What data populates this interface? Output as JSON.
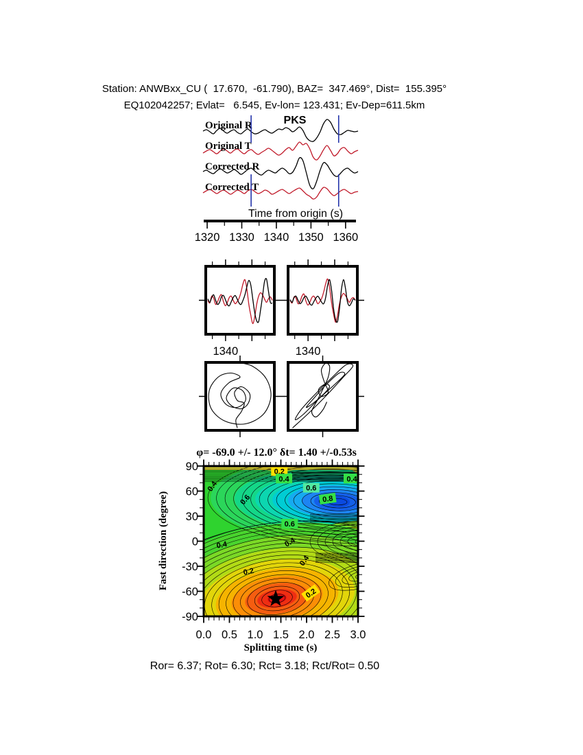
{
  "page": {
    "header_line1": "Station: ANWBxx_CU (  17.670,  -61.790), BAZ=  347.469°, Dist=  155.395°",
    "header_line2": "EQ102042257; Evlat=   6.545, Ev-lon= 123.431; Ev-Dep=611.5km",
    "stats_line": "Ror= 6.37; Rot= 6.30; Rct= 3.18; Rct/Rot= 0.50"
  },
  "colors": {
    "trace_red": "#c01828",
    "window_line_blue": "#2233aa",
    "phase_red": "#ee2222",
    "contour_green": "#2fd32f",
    "contour_blue": "#0b4ae0",
    "contour_red": "#e61212",
    "contour_yellow": "#e0e005"
  },
  "chart_data": [
    {
      "type": "line",
      "name": "seismogram traces",
      "phase_label": "PKS",
      "xlabel": "Time from origin (s)",
      "xlim": [
        1318.8,
        1363.6
      ],
      "x_major_ticks": [
        1320,
        1330,
        1340,
        1350,
        1360
      ],
      "x_minor_ticks": [
        1325,
        1335,
        1345,
        1355
      ],
      "window_lines": [
        1332.7,
        1358.0
      ],
      "traces": [
        {
          "name": "Original R",
          "color": "#000000",
          "values": [
            1,
            3,
            0,
            -3,
            2,
            5,
            1,
            -2,
            1,
            3,
            -1,
            -3,
            1,
            4,
            0,
            -3,
            -2,
            1,
            3,
            0,
            -2,
            1,
            4,
            3,
            6,
            4,
            0,
            3,
            7,
            2,
            -8,
            -13,
            -14,
            -9,
            0,
            12,
            18,
            14,
            4,
            -3,
            -4,
            -1,
            2,
            1,
            0,
            1
          ]
        },
        {
          "name": "Original T",
          "color": "#c01828",
          "values": [
            -2,
            1,
            3,
            0,
            -3,
            1,
            4,
            1,
            -2,
            2,
            4,
            0,
            -3,
            1,
            3,
            -1,
            -4,
            -1,
            2,
            5,
            2,
            -2,
            -5,
            -2,
            3,
            6,
            2,
            8,
            14,
            10,
            12,
            4,
            -8,
            -12,
            -6,
            3,
            9,
            2,
            -6,
            -3,
            4,
            6,
            1,
            -3,
            0,
            2
          ]
        },
        {
          "name": "Corrected R",
          "color": "#000000",
          "values": [
            0,
            2,
            -1,
            -3,
            1,
            4,
            1,
            -2,
            0,
            3,
            0,
            -4,
            -1,
            3,
            5,
            1,
            -3,
            -5,
            -1,
            2,
            0,
            -2,
            2,
            5,
            2,
            -3,
            -1,
            8,
            20,
            16,
            -2,
            -20,
            -25,
            -14,
            2,
            13,
            10,
            2,
            -5,
            -7,
            -2,
            3,
            5,
            1,
            -2,
            0
          ]
        },
        {
          "name": "Corrected T",
          "color": "#c01828",
          "values": [
            -1,
            2,
            4,
            1,
            -2,
            1,
            3,
            0,
            -3,
            0,
            3,
            1,
            -2,
            2,
            4,
            1,
            -2,
            0,
            3,
            1,
            -3,
            -1,
            2,
            4,
            1,
            -2,
            1,
            4,
            6,
            2,
            -3,
            -6,
            -10,
            -7,
            1,
            7,
            5,
            -1,
            -5,
            -2,
            2,
            4,
            1,
            -2,
            0,
            1
          ]
        }
      ]
    },
    {
      "type": "line",
      "name": "fast-slow waveform comparison",
      "panels": [
        {
          "x_tick_label": "1340",
          "series": [
            {
              "name": "component 1",
              "color": "#c01828",
              "values": [
                0,
                -4,
                6,
                3,
                -6,
                -2,
                5,
                8,
                -2,
                -8,
                -3,
                4,
                6,
                0,
                -5,
                -2,
                3,
                12,
                24,
                30,
                16,
                -6,
                -22,
                -34,
                -24,
                -6,
                6,
                11,
                8,
                2,
                -3,
                2,
                5,
                0
              ]
            },
            {
              "name": "component 2",
              "color": "#000000",
              "values": [
                2,
                -3,
                4,
                8,
                0,
                -6,
                -3,
                5,
                7,
                1,
                -6,
                -8,
                -2,
                4,
                7,
                2,
                -4,
                -6,
                0,
                8,
                20,
                29,
                22,
                2,
                -18,
                -30,
                -31,
                -14,
                6,
                27,
                31,
                14,
                -3,
                -4
              ]
            }
          ]
        },
        {
          "x_tick_label": "1340",
          "series": [
            {
              "name": "component 1",
              "color": "#c01828",
              "values": [
                0,
                -4,
                5,
                3,
                -5,
                -2,
                6,
                9,
                -1,
                -7,
                -3,
                4,
                6,
                1,
                -5,
                -2,
                3,
                12,
                24,
                31,
                18,
                -4,
                -20,
                -32,
                -22,
                -5,
                5,
                10,
                7,
                2,
                -3,
                2,
                4,
                0
              ]
            },
            {
              "name": "component 2",
              "color": "#000000",
              "values": [
                1,
                -3,
                4,
                6,
                0,
                -5,
                -2,
                4,
                6,
                1,
                -5,
                -7,
                -2,
                3,
                6,
                2,
                -3,
                -5,
                4,
                22,
                30,
                14,
                -12,
                -28,
                -31,
                -12,
                16,
                30,
                18,
                -2,
                -8,
                -4,
                2,
                0
              ]
            }
          ]
        }
      ]
    },
    {
      "type": "path",
      "name": "particle motion hodograms",
      "panels": [
        {
          "points": [
            [
              -6,
              -50
            ],
            [
              18,
              -44
            ],
            [
              38,
              -26
            ],
            [
              45,
              0
            ],
            [
              34,
              26
            ],
            [
              8,
              40
            ],
            [
              -22,
              36
            ],
            [
              -42,
              18
            ],
            [
              -45,
              -8
            ],
            [
              -32,
              -28
            ],
            [
              -14,
              -34
            ],
            [
              0,
              -28
            ],
            [
              -16,
              -20
            ],
            [
              -28,
              -4
            ],
            [
              -20,
              12
            ],
            [
              -4,
              16
            ],
            [
              8,
              6
            ],
            [
              4,
              -8
            ],
            [
              -10,
              -12
            ],
            [
              -20,
              2
            ],
            [
              -12,
              14
            ],
            [
              2,
              18
            ],
            [
              12,
              10
            ],
            [
              14,
              -4
            ],
            [
              2,
              -14
            ],
            [
              -8,
              -6
            ],
            [
              -4,
              6
            ],
            [
              6,
              10
            ],
            [
              2,
              22
            ],
            [
              -6,
              34
            ],
            [
              -4,
              46
            ]
          ]
        },
        {
          "points": [
            [
              -44,
              46
            ],
            [
              -20,
              24
            ],
            [
              6,
              -2
            ],
            [
              30,
              -28
            ],
            [
              44,
              -44
            ],
            [
              34,
              -46
            ],
            [
              12,
              -26
            ],
            [
              -12,
              -2
            ],
            [
              -32,
              20
            ],
            [
              -40,
              34
            ],
            [
              -28,
              26
            ],
            [
              -6,
              4
            ],
            [
              16,
              -16
            ],
            [
              32,
              -32
            ],
            [
              24,
              -34
            ],
            [
              4,
              -16
            ],
            [
              -14,
              4
            ],
            [
              -24,
              16
            ],
            [
              -14,
              10
            ],
            [
              2,
              -4
            ],
            [
              10,
              -14
            ],
            [
              4,
              -18
            ],
            [
              -6,
              -10
            ],
            [
              -2,
              0
            ],
            [
              8,
              -6
            ],
            [
              2,
              -22
            ],
            [
              -2,
              -38
            ],
            [
              4,
              -48
            ],
            [
              10,
              -44
            ],
            [
              8,
              -28
            ],
            [
              0,
              -10
            ],
            [
              -8,
              6
            ],
            [
              -16,
              22
            ],
            [
              -10,
              30
            ],
            [
              0,
              20
            ],
            [
              6,
              8
            ]
          ]
        }
      ]
    },
    {
      "type": "contour",
      "name": "splitting misfit surface",
      "title": "φ= -69.0 +/- 12.0° δt= 1.40 +/-0.53s",
      "xlabel": "Splitting time (s)",
      "ylabel": "Fast direction (degree)",
      "xlim": [
        0,
        3
      ],
      "ylim": [
        -90,
        90
      ],
      "x_ticks": [
        "0.0",
        "0.5",
        "1.0",
        "1.5",
        "2.0",
        "2.5",
        "3.0"
      ],
      "y_ticks": [
        "90",
        "60",
        "30",
        "0",
        "-30",
        "-60",
        "-90"
      ],
      "best_fit": {
        "fast_direction_deg": -69.0,
        "fast_direction_err_deg": 12.0,
        "delay_time_s": 1.4,
        "delay_time_err_s": 0.53
      },
      "star": {
        "x": 1.4,
        "y": -69
      },
      "contour_labels": [
        {
          "v": "0.2",
          "x": 1.47,
          "y": 84,
          "bg": "#ffe000",
          "rot": 0
        },
        {
          "v": "0.4",
          "x": 1.56,
          "y": 75,
          "bg": "#35e046",
          "rot": 0
        },
        {
          "v": "0.4",
          "x": 2.88,
          "y": 75,
          "bg": "#35e046",
          "rot": 0
        },
        {
          "v": "0.6",
          "x": 2.09,
          "y": 64,
          "bg": "#52e8a0",
          "rot": 0
        },
        {
          "v": "0.8",
          "x": 2.41,
          "y": 51,
          "bg": "#35e046",
          "rot": -8
        },
        {
          "v": "0.4",
          "x": 0.16,
          "y": 66,
          "bg": "",
          "rot": -55
        },
        {
          "v": "0.6",
          "x": 0.8,
          "y": 50,
          "bg": "",
          "rot": -48
        },
        {
          "v": "0.6",
          "x": 1.67,
          "y": 21,
          "bg": "#35e046",
          "rot": 0
        },
        {
          "v": "0.4",
          "x": 0.35,
          "y": -4,
          "bg": "",
          "rot": -10
        },
        {
          "v": "0.4",
          "x": 1.67,
          "y": -1,
          "bg": "",
          "rot": -30
        },
        {
          "v": "0.4",
          "x": 1.95,
          "y": -23,
          "bg": "",
          "rot": -55
        },
        {
          "v": "0.2",
          "x": 0.87,
          "y": -36,
          "bg": "",
          "rot": -12
        },
        {
          "v": "0.2",
          "x": 2.08,
          "y": -62,
          "bg": "#ffe000",
          "rot": -35
        }
      ]
    }
  ]
}
